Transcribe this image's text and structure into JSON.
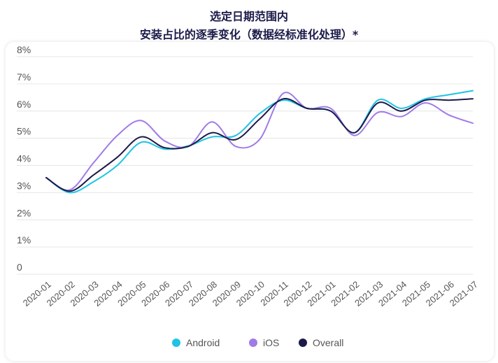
{
  "chart_data": {
    "type": "line",
    "title_line1": "选定日期范围内",
    "title_line2": "安装占比的逐季变化（数据经标准化处理）*",
    "xlabel": "",
    "ylabel": "",
    "ylim": [
      0,
      8
    ],
    "y_ticks": [
      "0",
      "1%",
      "2%",
      "3%",
      "4%",
      "5%",
      "6%",
      "7%",
      "8%"
    ],
    "categories": [
      "2020-01",
      "2020-02",
      "2020-03",
      "2020-04",
      "2020-05",
      "2020-06",
      "2020-07",
      "2020-08",
      "2020-09",
      "2020-10",
      "2020-11",
      "2020-12",
      "2021-01",
      "2021-02",
      "2021-03",
      "2021-04",
      "2021-05",
      "2021-06",
      "2021-07"
    ],
    "grid": true,
    "legend_position": "bottom",
    "series": [
      {
        "name": "Android",
        "color": "#1ec3e6",
        "values": [
          3.55,
          3.0,
          3.4,
          4.0,
          4.85,
          4.6,
          4.72,
          5.05,
          5.1,
          5.9,
          6.4,
          6.1,
          6.0,
          5.2,
          6.4,
          6.1,
          6.45,
          6.6,
          6.75
        ]
      },
      {
        "name": "iOS",
        "color": "#a07be8",
        "values": [
          3.55,
          3.1,
          4.1,
          5.1,
          5.65,
          4.9,
          4.7,
          5.6,
          4.7,
          4.95,
          6.65,
          6.1,
          6.1,
          5.1,
          5.95,
          5.8,
          6.3,
          5.85,
          5.55
        ]
      },
      {
        "name": "Overall",
        "color": "#1b1a4a",
        "values": [
          3.55,
          3.05,
          3.65,
          4.3,
          5.05,
          4.65,
          4.7,
          5.2,
          4.95,
          5.7,
          6.45,
          6.1,
          6.0,
          5.2,
          6.3,
          6.0,
          6.4,
          6.4,
          6.45
        ]
      }
    ]
  }
}
